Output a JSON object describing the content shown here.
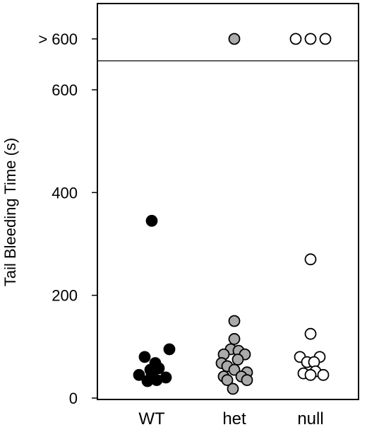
{
  "chart_data": {
    "type": "scatter",
    "title": "",
    "xlabel": "",
    "ylabel": "Tail Bleeding Time (s)",
    "categories": [
      "WT",
      "het",
      "null"
    ],
    "ylim": [
      0,
      600
    ],
    "yticks": [
      {
        "value": 0,
        "label": "0"
      },
      {
        "value": 200,
        "label": "200"
      },
      {
        "value": 400,
        "label": "400"
      },
      {
        "value": 600,
        "label": "600"
      }
    ],
    "break_label": "> 600",
    "grid": false,
    "legend": "none",
    "series": [
      {
        "category": "WT",
        "color": "#000000",
        "stroke": "#000000",
        "points": [
          {
            "x": -0.1,
            "y": 80
          },
          {
            "x": 0.25,
            "y": 95
          },
          {
            "x": -0.18,
            "y": 45
          },
          {
            "x": -0.02,
            "y": 55
          },
          {
            "x": 0.1,
            "y": 58
          },
          {
            "x": 0.05,
            "y": 68
          },
          {
            "x": 0.0,
            "y": 45
          },
          {
            "x": 0.07,
            "y": 35
          },
          {
            "x": -0.06,
            "y": 33
          },
          {
            "x": 0.2,
            "y": 40
          },
          {
            "x": 0.0,
            "y": 345
          }
        ],
        "over_600": 0
      },
      {
        "category": "het",
        "color": "#aaaaaa",
        "stroke": "#000000",
        "points": [
          {
            "x": 0.0,
            "y": 150
          },
          {
            "x": 0.0,
            "y": 115
          },
          {
            "x": -0.05,
            "y": 95
          },
          {
            "x": 0.06,
            "y": 92
          },
          {
            "x": -0.15,
            "y": 85
          },
          {
            "x": 0.15,
            "y": 85
          },
          {
            "x": -0.18,
            "y": 68
          },
          {
            "x": 0.05,
            "y": 75
          },
          {
            "x": -0.1,
            "y": 62
          },
          {
            "x": 0.0,
            "y": 55
          },
          {
            "x": 0.18,
            "y": 50
          },
          {
            "x": -0.15,
            "y": 42
          },
          {
            "x": 0.1,
            "y": 42
          },
          {
            "x": -0.1,
            "y": 35
          },
          {
            "x": 0.18,
            "y": 35
          },
          {
            "x": -0.02,
            "y": 18
          }
        ],
        "over_600": 1
      },
      {
        "category": "null",
        "color": "#ffffff",
        "stroke": "#000000",
        "points": [
          {
            "x": 0.0,
            "y": 270
          },
          {
            "x": 0.0,
            "y": 125
          },
          {
            "x": -0.15,
            "y": 80
          },
          {
            "x": 0.13,
            "y": 80
          },
          {
            "x": -0.05,
            "y": 70
          },
          {
            "x": 0.05,
            "y": 70
          },
          {
            "x": -0.1,
            "y": 48
          },
          {
            "x": 0.07,
            "y": 52
          },
          {
            "x": 0.0,
            "y": 45
          },
          {
            "x": 0.18,
            "y": 45
          }
        ],
        "over_600": 3
      }
    ]
  }
}
